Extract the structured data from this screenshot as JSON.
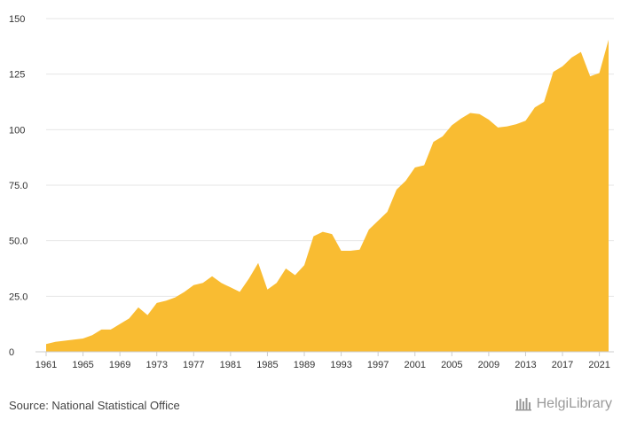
{
  "colors": {
    "area": "#f9bc32",
    "grid": "#e6e6e6",
    "axis": "#cccccc",
    "text": "#333333"
  },
  "source": "Source: National Statistical Office",
  "logo": {
    "text": "HelgiLibrary",
    "icon": "helgi-library-logo-icon"
  },
  "chart_data": {
    "type": "area",
    "title": "",
    "xlabel": "",
    "ylabel": "",
    "ylim": [
      0,
      150
    ],
    "xlim": [
      1961,
      2022
    ],
    "grid": "horizontal",
    "y_ticks": [
      0,
      25,
      50,
      75,
      100,
      125,
      150
    ],
    "y_tick_labels": [
      "0",
      "25.0",
      "50.0",
      "75.0",
      "100",
      "125",
      "150"
    ],
    "x_ticks": [
      1961,
      1965,
      1969,
      1973,
      1977,
      1981,
      1985,
      1989,
      1993,
      1997,
      2001,
      2005,
      2009,
      2013,
      2017,
      2021
    ],
    "x_tick_labels": [
      "1961",
      "1965",
      "1969",
      "1973",
      "1977",
      "1981",
      "1985",
      "1989",
      "1993",
      "1997",
      "2001",
      "2005",
      "2009",
      "2013",
      "2017",
      "2021"
    ],
    "x": [
      1961,
      1962,
      1963,
      1964,
      1965,
      1966,
      1967,
      1968,
      1969,
      1970,
      1971,
      1972,
      1973,
      1974,
      1975,
      1976,
      1977,
      1978,
      1979,
      1980,
      1981,
      1982,
      1983,
      1984,
      1985,
      1986,
      1987,
      1988,
      1989,
      1990,
      1991,
      1992,
      1993,
      1994,
      1995,
      1996,
      1997,
      1998,
      1999,
      2000,
      2001,
      2002,
      2003,
      2004,
      2005,
      2006,
      2007,
      2008,
      2009,
      2010,
      2011,
      2012,
      2013,
      2014,
      2015,
      2016,
      2017,
      2018,
      2019,
      2020,
      2021,
      2022
    ],
    "series": [
      {
        "values": [
          3.5,
          4.5,
          5.0,
          5.5,
          6.0,
          7.5,
          10,
          10,
          12.5,
          15,
          20,
          16.5,
          22,
          23,
          24.5,
          27,
          30,
          31,
          34,
          31,
          29,
          27,
          33,
          40,
          28,
          31,
          37.5,
          34.5,
          39,
          52,
          54,
          53,
          45.5,
          45.5,
          46,
          55,
          59,
          63,
          73,
          77,
          83,
          84,
          94.5,
          97,
          102,
          105,
          107.5,
          107,
          104.5,
          101,
          101.5,
          102.5,
          104,
          110,
          112.5,
          126,
          128.5,
          132.5,
          135,
          124,
          125.5,
          140.5
        ]
      }
    ]
  }
}
